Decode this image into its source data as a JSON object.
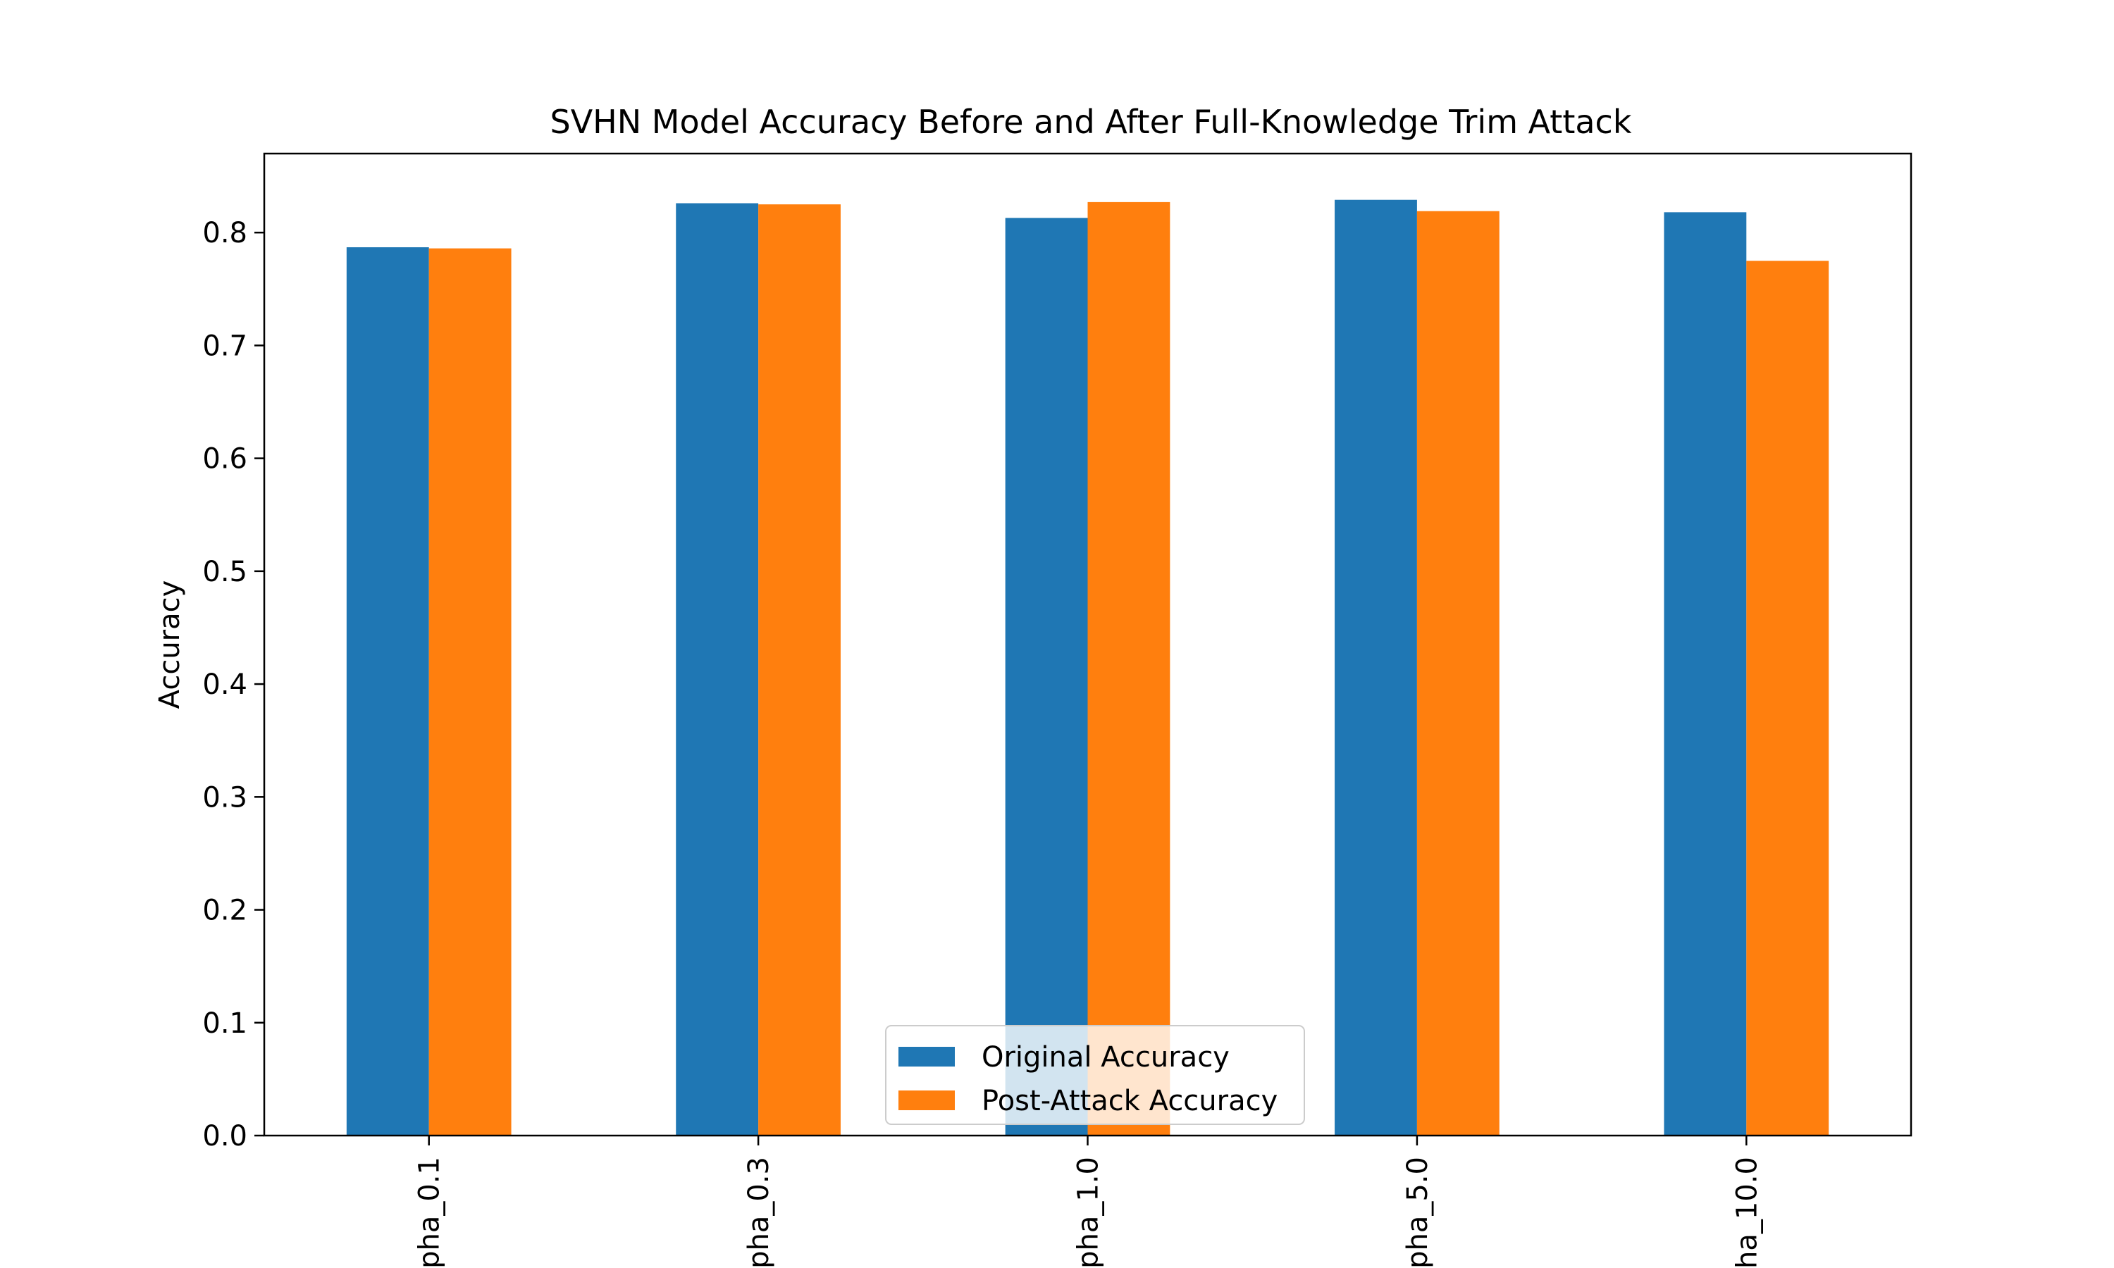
{
  "chart_data": {
    "type": "bar",
    "title": "SVHN Model Accuracy Before and After Full-Knowledge Trim Attack",
    "xlabel": "",
    "ylabel": "Accuracy",
    "categories": [
      "pha_0.1",
      "pha_0.3",
      "pha_1.0",
      "pha_5.0",
      "ha_10.0"
    ],
    "series": [
      {
        "name": "Original Accuracy",
        "color": "#1f77b4",
        "values": [
          0.787,
          0.826,
          0.813,
          0.829,
          0.818
        ]
      },
      {
        "name": "Post-Attack Accuracy",
        "color": "#ff7f0e",
        "values": [
          0.786,
          0.825,
          0.827,
          0.819,
          0.775
        ]
      }
    ],
    "ylim": [
      0,
      0.87
    ],
    "yticks": [
      0.0,
      0.1,
      0.2,
      0.3,
      0.4,
      0.5,
      0.6,
      0.7,
      0.8
    ],
    "grid": false,
    "legend_position": "bottom-center"
  }
}
